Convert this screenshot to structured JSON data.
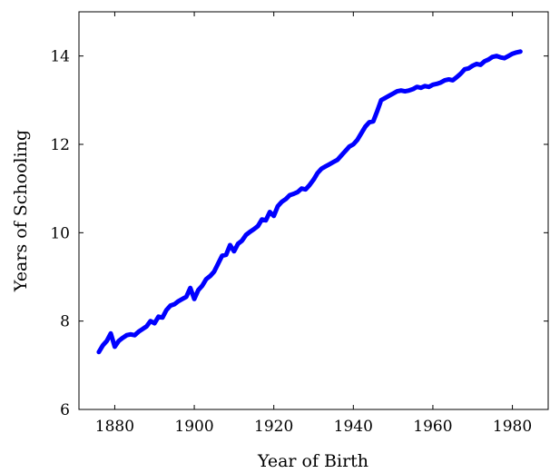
{
  "chart_data": {
    "type": "line",
    "title": "",
    "xlabel": "Year of Birth",
    "ylabel": "Years of Schooling",
    "xlim": [
      1871,
      1989
    ],
    "ylim": [
      6,
      15
    ],
    "xticks": [
      1880,
      1900,
      1920,
      1940,
      1960,
      1980
    ],
    "yticks": [
      6,
      8,
      10,
      12,
      14
    ],
    "grid": false,
    "legend": "none",
    "series": [
      {
        "color": "#0000ff",
        "x": [
          1876,
          1877,
          1878,
          1879,
          1880,
          1881,
          1882,
          1883,
          1884,
          1885,
          1886,
          1887,
          1888,
          1889,
          1890,
          1891,
          1892,
          1893,
          1894,
          1895,
          1896,
          1897,
          1898,
          1899,
          1900,
          1901,
          1902,
          1903,
          1904,
          1905,
          1906,
          1907,
          1908,
          1909,
          1910,
          1911,
          1912,
          1913,
          1914,
          1915,
          1916,
          1917,
          1918,
          1919,
          1920,
          1921,
          1922,
          1923,
          1924,
          1925,
          1926,
          1927,
          1928,
          1929,
          1930,
          1931,
          1932,
          1933,
          1934,
          1935,
          1936,
          1937,
          1938,
          1939,
          1940,
          1941,
          1942,
          1943,
          1944,
          1945,
          1946,
          1947,
          1948,
          1949,
          1950,
          1951,
          1952,
          1953,
          1954,
          1955,
          1956,
          1957,
          1958,
          1959,
          1960,
          1961,
          1962,
          1963,
          1964,
          1965,
          1966,
          1967,
          1968,
          1969,
          1970,
          1971,
          1972,
          1973,
          1974,
          1975,
          1976,
          1977,
          1978,
          1979,
          1980,
          1981,
          1982
        ],
        "y": [
          7.3,
          7.45,
          7.55,
          7.72,
          7.42,
          7.55,
          7.62,
          7.68,
          7.7,
          7.68,
          7.76,
          7.82,
          7.88,
          8.0,
          7.95,
          8.1,
          8.08,
          8.25,
          8.35,
          8.38,
          8.45,
          8.5,
          8.55,
          8.75,
          8.5,
          8.7,
          8.8,
          8.95,
          9.02,
          9.12,
          9.3,
          9.48,
          9.5,
          9.72,
          9.58,
          9.75,
          9.82,
          9.95,
          10.02,
          10.08,
          10.15,
          10.3,
          10.28,
          10.47,
          10.38,
          10.6,
          10.7,
          10.76,
          10.85,
          10.88,
          10.92,
          11.0,
          10.98,
          11.08,
          11.2,
          11.35,
          11.45,
          11.5,
          11.55,
          11.6,
          11.65,
          11.75,
          11.85,
          11.95,
          12.0,
          12.1,
          12.25,
          12.4,
          12.5,
          12.52,
          12.75,
          13.0,
          13.05,
          13.1,
          13.15,
          13.2,
          13.22,
          13.2,
          13.22,
          13.25,
          13.3,
          13.28,
          13.32,
          13.3,
          13.35,
          13.37,
          13.4,
          13.45,
          13.47,
          13.45,
          13.52,
          13.6,
          13.7,
          13.72,
          13.78,
          13.82,
          13.8,
          13.88,
          13.92,
          13.98,
          14.0,
          13.97,
          13.95,
          14.0,
          14.05,
          14.08,
          14.1
        ]
      }
    ]
  }
}
